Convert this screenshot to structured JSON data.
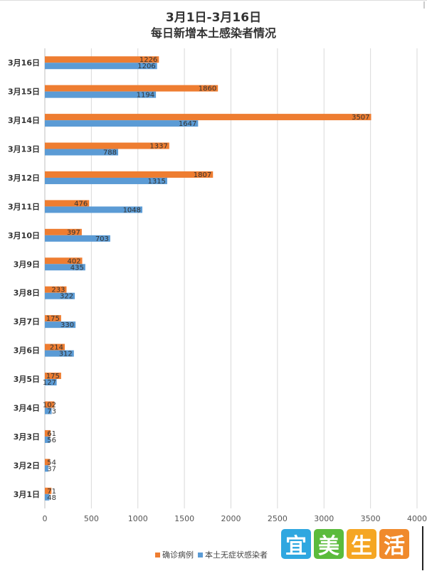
{
  "chart_data": {
    "type": "bar",
    "orientation": "horizontal",
    "title": "3月1日-3月16日",
    "subtitle": "每日新增本土感染者情况",
    "categories": [
      "3月16日",
      "3月15日",
      "3月14日",
      "3月13日",
      "3月12日",
      "3月11日",
      "3月10日",
      "3月9日",
      "3月8日",
      "3月7日",
      "3月6日",
      "3月5日",
      "3月4日",
      "3月3日",
      "3月2日",
      "3月1日"
    ],
    "series": [
      {
        "name": "确诊病例",
        "color": "#ee7d31",
        "values": [
          1226,
          1860,
          3507,
          1337,
          1807,
          476,
          397,
          402,
          233,
          175,
          214,
          175,
          102,
          61,
          54,
          71
        ]
      },
      {
        "name": "本土无症状感染者",
        "color": "#5b9bd5",
        "values": [
          1206,
          1194,
          1647,
          788,
          1315,
          1048,
          703,
          435,
          322,
          330,
          312,
          127,
          73,
          56,
          37,
          48
        ]
      }
    ],
    "xlim": [
      0,
      4000
    ],
    "xticks": [
      "0",
      "500",
      "1000",
      "1500",
      "2000",
      "2500",
      "3000",
      "3500",
      "4000"
    ],
    "grid": "vertical",
    "legend": "bottom"
  },
  "watermark": {
    "chars": [
      "宜",
      "美",
      "生",
      "活"
    ],
    "colors": [
      "#2fa7e0",
      "#5bbb3c",
      "#f5a623",
      "#f08a2c"
    ]
  }
}
